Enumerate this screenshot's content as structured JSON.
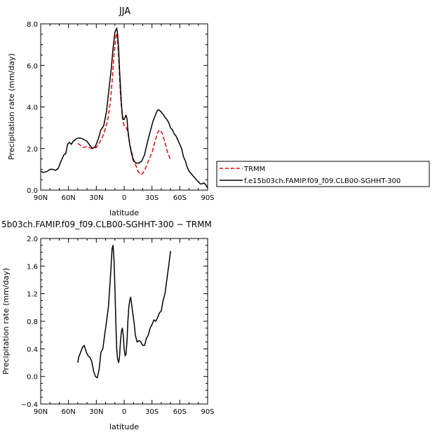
{
  "chart_data": [
    {
      "type": "line",
      "title": "JJA",
      "xlabel": "latitude",
      "ylabel": "Precipitation rate (mm/day)",
      "xlim": [
        90,
        -90
      ],
      "ylim": [
        0,
        8
      ],
      "xticks": [
        {
          "v": 90,
          "label": "90N"
        },
        {
          "v": 60,
          "label": "60N"
        },
        {
          "v": 30,
          "label": "30N"
        },
        {
          "v": 0,
          "label": "0"
        },
        {
          "v": -30,
          "label": "30S"
        },
        {
          "v": -60,
          "label": "60S"
        },
        {
          "v": -90,
          "label": "90S"
        }
      ],
      "yticks": [
        {
          "v": 0,
          "label": "0.0"
        },
        {
          "v": 2,
          "label": "2.0"
        },
        {
          "v": 4,
          "label": "4.0"
        },
        {
          "v": 6,
          "label": "6.0"
        },
        {
          "v": 8,
          "label": "8.0"
        }
      ],
      "legend_position": "right",
      "series": [
        {
          "name": "TRMM",
          "color": "#ff0000",
          "dash": "dashed",
          "x": [
            50,
            47,
            44,
            40,
            35,
            30,
            25,
            22,
            18,
            15,
            13,
            11,
            9,
            8,
            7,
            6,
            4,
            2,
            0,
            -2,
            -4,
            -6,
            -10,
            -15,
            -18,
            -20,
            -23,
            -26,
            -30,
            -33,
            -36,
            -38,
            -41,
            -44,
            -47,
            -50
          ],
          "y": [
            2.25,
            2.15,
            2.05,
            2.1,
            2.0,
            2.05,
            2.4,
            2.7,
            3.3,
            4.2,
            5.2,
            6.5,
            7.4,
            7.55,
            7.2,
            6.4,
            4.6,
            3.5,
            3.1,
            3.05,
            2.8,
            2.2,
            1.5,
            0.9,
            0.75,
            0.8,
            1.05,
            1.4,
            1.8,
            2.3,
            2.75,
            2.9,
            2.75,
            2.3,
            1.8,
            1.45
          ]
        },
        {
          "name": "f.e15b03ch.FAMIP.f09_f09.CLB00-SGHHT-300",
          "color": "#000000",
          "dash": "solid",
          "x": [
            90,
            87,
            83,
            80,
            77,
            74,
            71,
            68,
            65,
            63,
            61,
            59,
            57,
            55,
            52,
            50,
            47,
            44,
            40,
            37,
            34,
            31,
            28,
            25,
            22,
            19,
            16,
            14,
            12,
            10,
            9,
            8,
            7,
            6,
            5,
            4,
            3,
            2,
            1,
            0,
            -1,
            -2,
            -3,
            -4,
            -6,
            -8,
            -10,
            -13,
            -16,
            -19,
            -22,
            -25,
            -28,
            -31,
            -34,
            -36,
            -38,
            -40,
            -42,
            -44,
            -46,
            -48,
            -50,
            -52,
            -54,
            -56,
            -58,
            -60,
            -62,
            -64,
            -66,
            -68,
            -70,
            -72,
            -74,
            -76,
            -78,
            -80,
            -82,
            -84,
            -86,
            -88,
            -90
          ],
          "y": [
            0.9,
            0.85,
            0.9,
            1.0,
            1.0,
            0.95,
            1.05,
            1.4,
            1.7,
            1.75,
            2.2,
            2.3,
            2.2,
            2.35,
            2.45,
            2.5,
            2.5,
            2.45,
            2.35,
            2.15,
            2.0,
            2.1,
            2.45,
            2.9,
            3.1,
            3.8,
            5.0,
            5.8,
            6.8,
            7.6,
            7.7,
            7.8,
            7.5,
            6.8,
            5.8,
            5.0,
            4.2,
            3.6,
            3.4,
            3.4,
            3.5,
            3.6,
            3.45,
            2.9,
            2.2,
            1.75,
            1.4,
            1.3,
            1.3,
            1.4,
            1.7,
            2.3,
            2.8,
            3.3,
            3.65,
            3.85,
            3.85,
            3.75,
            3.65,
            3.5,
            3.4,
            3.25,
            3.0,
            2.9,
            2.7,
            2.6,
            2.4,
            2.2,
            2.0,
            1.6,
            1.4,
            1.1,
            0.9,
            0.8,
            0.7,
            0.6,
            0.5,
            0.4,
            0.3,
            0.3,
            0.35,
            0.25,
            0.1
          ]
        }
      ]
    },
    {
      "type": "line",
      "title": "5b03ch.FAMIP.f09_f09.CLB00-SGHHT-300 − TRMM",
      "xlabel": "latitude",
      "ylabel": "Precipitation rate (mm/day)",
      "xlim": [
        90,
        -90
      ],
      "ylim": [
        -0.4,
        2.0
      ],
      "xticks": [
        {
          "v": 90,
          "label": "90N"
        },
        {
          "v": 60,
          "label": "60N"
        },
        {
          "v": 30,
          "label": "30N"
        },
        {
          "v": 0,
          "label": "0"
        },
        {
          "v": -30,
          "label": "30S"
        },
        {
          "v": -60,
          "label": "60S"
        },
        {
          "v": -90,
          "label": "90S"
        }
      ],
      "yticks": [
        {
          "v": -0.4,
          "label": "−0.4"
        },
        {
          "v": 0.0,
          "label": "0.0"
        },
        {
          "v": 0.4,
          "label": "0.4"
        },
        {
          "v": 0.8,
          "label": "0.8"
        },
        {
          "v": 1.2,
          "label": "1.2"
        },
        {
          "v": 1.6,
          "label": "1.6"
        },
        {
          "v": 2.0,
          "label": "2.0"
        }
      ],
      "series": [
        {
          "name": "",
          "color": "#000000",
          "dash": "solid",
          "x": [
            50,
            49,
            47,
            45,
            43,
            41,
            39,
            37,
            35,
            33,
            31,
            29,
            27,
            25,
            23,
            21,
            19,
            17,
            15,
            13,
            12,
            11,
            10,
            9,
            8,
            7,
            6,
            5,
            4,
            3,
            2,
            1,
            0,
            -1,
            -2,
            -3,
            -4,
            -5,
            -6,
            -7,
            -8,
            -9,
            -10,
            -11,
            -12,
            -14,
            -16,
            -18,
            -20,
            -22,
            -24,
            -26,
            -28,
            -30,
            -32,
            -34,
            -36,
            -38,
            -40,
            -42,
            -44,
            -46,
            -48,
            -50
          ],
          "y": [
            0.2,
            0.28,
            0.35,
            0.42,
            0.45,
            0.36,
            0.3,
            0.28,
            0.22,
            0.08,
            0.0,
            -0.02,
            0.1,
            0.35,
            0.4,
            0.6,
            0.8,
            1.0,
            1.4,
            1.85,
            1.9,
            1.7,
            1.3,
            0.8,
            0.4,
            0.25,
            0.2,
            0.28,
            0.5,
            0.65,
            0.7,
            0.6,
            0.4,
            0.3,
            0.32,
            0.5,
            0.8,
            1.0,
            1.1,
            1.15,
            1.05,
            0.95,
            0.85,
            0.75,
            0.6,
            0.5,
            0.52,
            0.5,
            0.45,
            0.45,
            0.55,
            0.6,
            0.7,
            0.75,
            0.82,
            0.8,
            0.85,
            0.92,
            0.95,
            1.1,
            1.2,
            1.4,
            1.6,
            1.82
          ]
        }
      ]
    }
  ]
}
